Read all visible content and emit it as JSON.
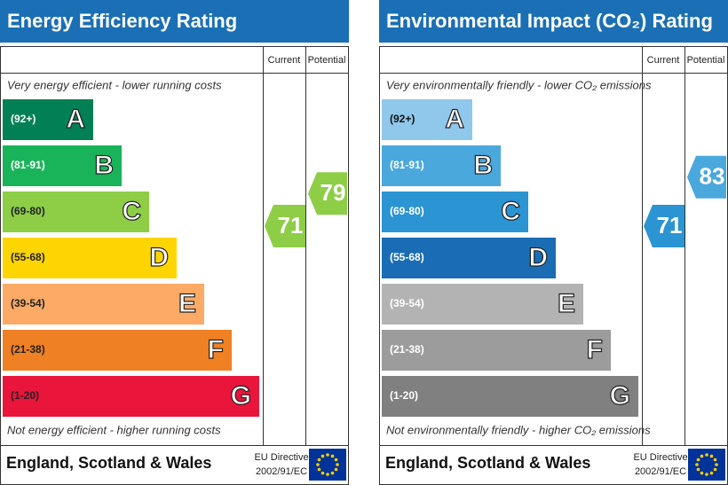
{
  "panels": [
    {
      "title": "Energy Efficiency Rating",
      "header_current": "Current",
      "header_potential": "Potential",
      "top_note": "Very energy efficient - lower running costs",
      "bottom_note": "Not energy efficient - higher running costs",
      "bands": [
        {
          "range": "(92+)",
          "letter": "A",
          "color": "#008054",
          "range_color": "#ffffff"
        },
        {
          "range": "(81-91)",
          "letter": "B",
          "color": "#19b459",
          "range_color": "#ffffff"
        },
        {
          "range": "(69-80)",
          "letter": "C",
          "color": "#8dce46",
          "range_color": "#222222"
        },
        {
          "range": "(55-68)",
          "letter": "D",
          "color": "#ffd500",
          "range_color": "#222222"
        },
        {
          "range": "(39-54)",
          "letter": "E",
          "color": "#fcaa65",
          "range_color": "#222222"
        },
        {
          "range": "(21-38)",
          "letter": "F",
          "color": "#ef8023",
          "range_color": "#222222"
        },
        {
          "range": "(1-20)",
          "letter": "G",
          "color": "#e9153b",
          "range_color": "#222222"
        }
      ],
      "current": 71,
      "current_color": "#8dce46",
      "potential": 79,
      "potential_color": "#8dce46",
      "footer": "England, Scotland & Wales",
      "directive_label": "EU Directive",
      "directive_code": "2002/91/EC"
    },
    {
      "title": "Environmental Impact (CO₂) Rating",
      "header_current": "Current",
      "header_potential": "Potential",
      "top_note": "Very environmentally friendly - lower CO₂ emissions",
      "bottom_note": "Not environmentally friendly - higher CO₂ emissions",
      "bands": [
        {
          "range": "(92+)",
          "letter": "A",
          "color": "#8fc8ea",
          "range_color": "#111111"
        },
        {
          "range": "(81-91)",
          "letter": "B",
          "color": "#4aa8dd",
          "range_color": "#ffffff"
        },
        {
          "range": "(69-80)",
          "letter": "C",
          "color": "#2b94d3",
          "range_color": "#ffffff"
        },
        {
          "range": "(55-68)",
          "letter": "D",
          "color": "#1a6db5",
          "range_color": "#ffffff"
        },
        {
          "range": "(39-54)",
          "letter": "E",
          "color": "#b3b3b3",
          "range_color": "#ffffff"
        },
        {
          "range": "(21-38)",
          "letter": "F",
          "color": "#9c9c9c",
          "range_color": "#ffffff"
        },
        {
          "range": "(1-20)",
          "letter": "G",
          "color": "#808080",
          "range_color": "#ffffff"
        }
      ],
      "current": 71,
      "current_color": "#2b94d3",
      "potential": 83,
      "potential_color": "#4aa8dd",
      "footer": "England, Scotland & Wales",
      "directive_label": "EU Directive",
      "directive_code": "2002/91/EC"
    }
  ]
}
